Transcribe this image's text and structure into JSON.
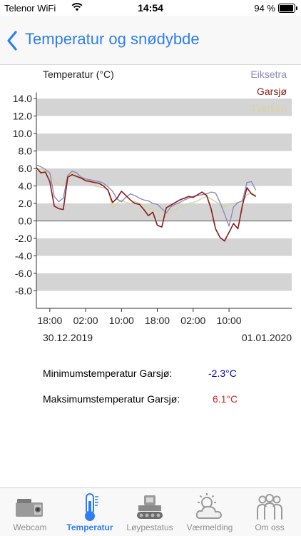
{
  "status_bar": {
    "carrier": "Telenor WiFi",
    "time": "14:54",
    "battery_percent": "94 %",
    "battery_level": 0.94
  },
  "nav": {
    "title": "Temperatur og snødybde"
  },
  "chart_data": {
    "type": "line",
    "ylabel": "Temperatur (°C)",
    "ylim": [
      -10,
      14.5
    ],
    "yticks": [
      "14.0",
      "12.0",
      "10.0",
      "8.0",
      "6.0",
      "4.0",
      "2.0",
      "0.0",
      "-2.0",
      "-4.0",
      "-6.0",
      "-8.0"
    ],
    "ytick_values": [
      14,
      12,
      10,
      8,
      6,
      4,
      2,
      0,
      -2,
      -4,
      -6,
      -8
    ],
    "xlim": [
      15,
      72
    ],
    "x_unit": "hours from 30.12.2019 00:00",
    "xticks": [
      "18:00",
      "02:00",
      "10:00",
      "18:00",
      "02:00",
      "10:00"
    ],
    "xtick_values": [
      18,
      26,
      34,
      42,
      50,
      58
    ],
    "date_labels": [
      "30.12.2019",
      "01.01.2020"
    ],
    "grid": "horizontal bands",
    "legend_position": "top-right",
    "series": [
      {
        "name": "Eiksetra",
        "color": "#8a8abf",
        "x": [
          15,
          16,
          17,
          18,
          19,
          20,
          21,
          22,
          23,
          24,
          25,
          26,
          27,
          28,
          29,
          30,
          31,
          32,
          33,
          34,
          35,
          36,
          37,
          38,
          39,
          40,
          41,
          42,
          43,
          44,
          45,
          46,
          47,
          48,
          49,
          50,
          51,
          52,
          53,
          54,
          55,
          56,
          57,
          58,
          59,
          60,
          61,
          62,
          63,
          64
        ],
        "y": [
          6.4,
          6.2,
          5.9,
          5.5,
          2.8,
          2.2,
          2.6,
          5.2,
          5.7,
          5.5,
          5.0,
          4.8,
          4.7,
          4.6,
          4.5,
          4.3,
          3.9,
          3.4,
          2.5,
          2.2,
          2.7,
          3.1,
          2.9,
          2.6,
          2.4,
          2.3,
          2.0,
          1.9,
          1.4,
          0.9,
          1.6,
          1.9,
          2.1,
          2.4,
          2.6,
          2.8,
          2.9,
          3.0,
          3.1,
          3.3,
          3.2,
          2.1,
          0.8,
          -0.6,
          1.6,
          2.1,
          2.3,
          4.4,
          4.5,
          3.5
        ]
      },
      {
        "name": "Garsjø",
        "color": "#8b1a1a",
        "x": [
          15,
          16,
          17,
          18,
          19,
          20,
          21,
          22,
          23,
          24,
          25,
          26,
          27,
          28,
          29,
          30,
          31,
          32,
          33,
          34,
          35,
          36,
          37,
          38,
          39,
          40,
          41,
          42,
          43,
          44,
          45,
          46,
          47,
          48,
          49,
          50,
          51,
          52,
          53,
          54,
          55,
          56,
          57,
          58,
          59,
          60,
          61,
          62,
          63,
          64
        ],
        "y": [
          6.1,
          5.5,
          5.6,
          4.5,
          1.7,
          1.4,
          1.3,
          5.0,
          5.3,
          5.1,
          4.9,
          4.6,
          4.5,
          4.4,
          4.3,
          4.0,
          3.5,
          2.1,
          2.6,
          3.4,
          2.9,
          2.4,
          2.0,
          1.9,
          1.3,
          0.6,
          1.0,
          -0.5,
          -0.7,
          1.5,
          1.8,
          2.1,
          2.4,
          2.6,
          2.8,
          2.7,
          3.0,
          3.3,
          2.9,
          1.4,
          -0.9,
          -1.9,
          -2.3,
          -1.3,
          -0.3,
          -0.9,
          1.8,
          3.8,
          3.1,
          2.8
        ]
      },
      {
        "name": "Tverken",
        "color": "#d6d49e",
        "x": [
          15,
          16,
          17,
          18,
          19,
          20,
          21,
          22,
          23,
          24,
          25,
          26,
          27,
          28,
          29,
          30,
          31,
          32,
          33,
          34,
          35,
          36,
          37,
          38,
          39,
          40,
          41,
          42,
          43,
          44,
          45,
          46,
          47,
          48,
          49,
          50,
          51,
          52,
          53,
          54,
          55,
          56,
          57,
          58,
          59,
          60,
          61,
          62,
          63,
          64
        ],
        "y": [
          5.9,
          6.0,
          5.6,
          5.4,
          4.5,
          4.2,
          4.0,
          5.3,
          5.4,
          5.2,
          4.8,
          4.5,
          4.2,
          4.0,
          3.9,
          3.8,
          3.6,
          1.5,
          2.0,
          2.4,
          2.1,
          2.0,
          2.2,
          2.0,
          1.8,
          1.5,
          1.3,
          1.2,
          1.2,
          0.4,
          1.1,
          1.3,
          1.6,
          1.8,
          2.0,
          2.1,
          2.3,
          2.6,
          2.8,
          2.5,
          2.2,
          1.9,
          1.5,
          2.0,
          2.0,
          2.1,
          2.2,
          3.0,
          3.2,
          2.9
        ]
      }
    ]
  },
  "stats": {
    "min_label": "Minimumstemperatur Garsjø:",
    "min_value": "-2.3°C",
    "max_label": "Maksimumstemperatur Garsjø:",
    "max_value": "6.1°C"
  },
  "tabs": [
    {
      "label": "Webcam",
      "icon": "webcam-icon",
      "active": false
    },
    {
      "label": "Temperatur",
      "icon": "thermometer-icon",
      "active": true
    },
    {
      "label": "Løypestatus",
      "icon": "snowcat-icon",
      "active": false
    },
    {
      "label": "Værmelding",
      "icon": "weather-icon",
      "active": false
    },
    {
      "label": "Om oss",
      "icon": "people-icon",
      "active": false
    }
  ],
  "colors": {
    "accent": "#2f7ef6",
    "min_value": "#0000cc",
    "max_value": "#dd2222",
    "grid_band": "#d4d4d4"
  }
}
